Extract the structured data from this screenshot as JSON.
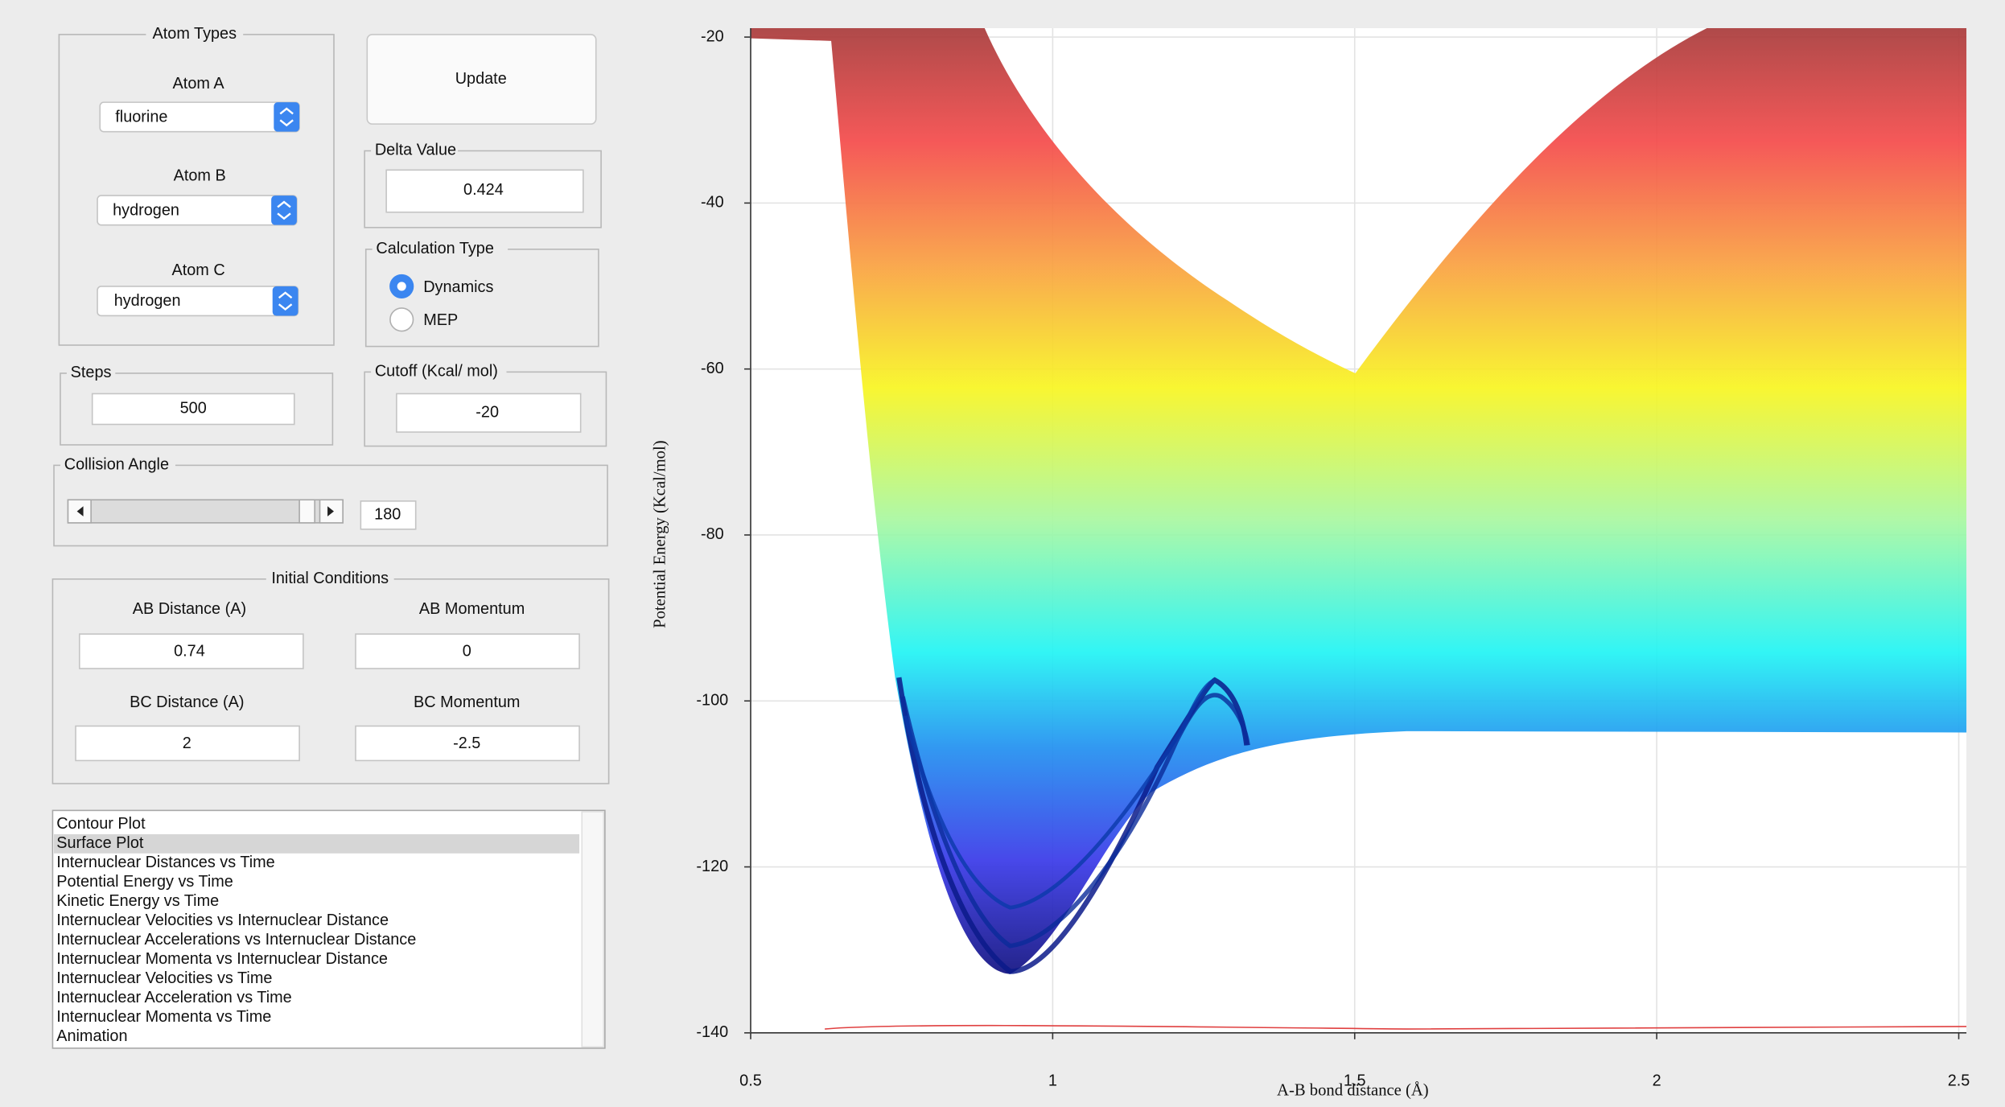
{
  "atom_types": {
    "title": "Atom Types",
    "atoms": [
      {
        "label": "Atom A",
        "value": "fluorine"
      },
      {
        "label": "Atom B",
        "value": "hydrogen"
      },
      {
        "label": "Atom C",
        "value": "hydrogen"
      }
    ]
  },
  "update_button": "Update",
  "delta_value": {
    "label": "Delta Value",
    "value": 0.424
  },
  "calculation_type": {
    "label": "Calculation Type",
    "options": [
      "Dynamics",
      "MEP"
    ],
    "selected": 0
  },
  "steps": {
    "label": "Steps",
    "value": 500
  },
  "cutoff": {
    "label": "Cutoff (Kcal/ mol)",
    "value": -20
  },
  "collision_angle": {
    "label": "Collision Angle",
    "value": 180
  },
  "initial_conditions": {
    "title": "Initial Conditions",
    "fields": [
      {
        "label": "AB Distance (A)",
        "value": 0.74
      },
      {
        "label": "AB Momentum",
        "value": 0
      },
      {
        "label": "BC Distance (A)",
        "value": 2
      },
      {
        "label": "BC Momentum",
        "value": -2.5
      }
    ]
  },
  "plot_list": {
    "items": [
      "Contour Plot",
      "Surface Plot",
      "Internuclear Distances vs Time",
      "Potential Energy vs Time",
      "Kinetic Energy vs Time",
      "Internuclear Velocities vs Internuclear Distance",
      "Internuclear Accelerations vs Internuclear Distance",
      "Internuclear Momenta vs Internuclear Distance",
      "Internuclear Velocities vs Time",
      "Internuclear Acceleration vs Time",
      "Internuclear Momenta vs Time",
      "Animation"
    ],
    "selected": 1
  },
  "chart_data": {
    "type": "surface",
    "xlabel": "A-B bond distance (Å)",
    "ylabel": "Potential Energy (Kcal/mol)",
    "xlim": [
      0.5,
      2.5
    ],
    "xticks": [
      0.5,
      1,
      1.5,
      2,
      2.5
    ],
    "ylim": [
      -140,
      -20
    ],
    "yticks": [
      -140,
      -120,
      -100,
      -80,
      -60,
      -40,
      -20
    ],
    "grid": true
  }
}
